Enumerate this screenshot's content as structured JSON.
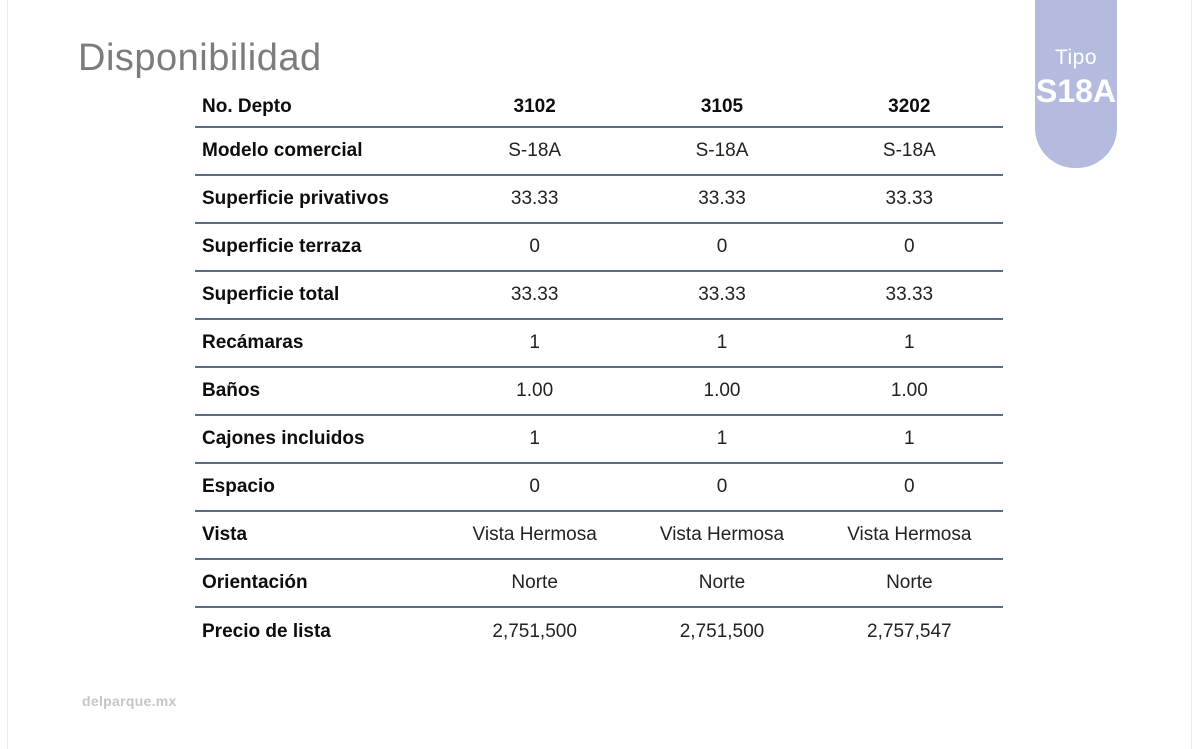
{
  "page": {
    "title": "Disponibilidad",
    "footer": "delparque.mx"
  },
  "badge": {
    "label": "Tipo",
    "value": "S18A"
  },
  "colors": {
    "badge_background": "#b5bbde",
    "badge_text": "#ffffff",
    "table_rule": "#5a6b7d",
    "title_gray": "#7c7c7c",
    "footer_gray": "#c5c5c5"
  },
  "table": {
    "header": {
      "label": "No. Depto",
      "columns": [
        "3102",
        "3105",
        "3202"
      ]
    },
    "rows": [
      {
        "label": "Modelo comercial",
        "values": [
          "S-18A",
          "S-18A",
          "S-18A"
        ]
      },
      {
        "label": "Superficie privativos",
        "values": [
          "33.33",
          "33.33",
          "33.33"
        ]
      },
      {
        "label": "Superficie terraza",
        "values": [
          "0",
          "0",
          "0"
        ]
      },
      {
        "label": "Superficie total",
        "values": [
          "33.33",
          "33.33",
          "33.33"
        ]
      },
      {
        "label": "Recámaras",
        "values": [
          "1",
          "1",
          "1"
        ]
      },
      {
        "label": "Baños",
        "values": [
          "1.00",
          "1.00",
          "1.00"
        ]
      },
      {
        "label": "Cajones incluidos",
        "values": [
          "1",
          "1",
          "1"
        ]
      },
      {
        "label": "Espacio",
        "values": [
          "0",
          "0",
          "0"
        ]
      },
      {
        "label": "Vista",
        "values": [
          "Vista Hermosa",
          "Vista Hermosa",
          "Vista Hermosa"
        ]
      },
      {
        "label": "Orientación",
        "values": [
          "Norte",
          "Norte",
          "Norte"
        ]
      },
      {
        "label": "Precio de lista",
        "values": [
          "2,751,500",
          "2,751,500",
          "2,757,547"
        ]
      }
    ]
  }
}
